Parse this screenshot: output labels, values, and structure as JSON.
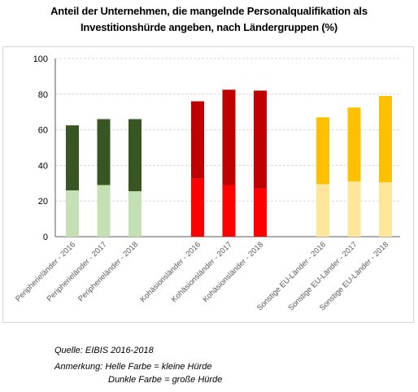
{
  "title": {
    "line1": "Anteil der Unternehmen, die mangelnde Personalqualifikation als",
    "line2": "Investitionshürde angeben, nach Ländergruppen (%)"
  },
  "chart_data": {
    "type": "bar",
    "stacked": true,
    "ylim": [
      0,
      100
    ],
    "yticks": [
      0,
      20,
      40,
      60,
      80,
      100
    ],
    "grid": true,
    "categories": [
      "Peripherieländer - 2016",
      "Peripherieländer - 2017",
      "Peripherieländer - 2018",
      "Kohäsionsländer - 2016",
      "Kohäsionsländer - 2017",
      "Kohäsionsländer - 2018",
      "Sonstige EU-Länder - 2016",
      "Sonstige EU-Länder - 2017",
      "Sonstige EU-Länder - 2018"
    ],
    "groups": [
      [
        0,
        1,
        2
      ],
      [
        3,
        4,
        5
      ],
      [
        6,
        7,
        8
      ]
    ],
    "series": [
      {
        "name": "kleine Hürde",
        "values": [
          26,
          29,
          25.5,
          32.5,
          29,
          27,
          29.5,
          31,
          30.5
        ]
      },
      {
        "name": "große Hürde",
        "values": [
          36.5,
          37,
          40.5,
          43.5,
          53.5,
          55,
          37.5,
          41.5,
          48.5
        ]
      }
    ],
    "colors": {
      "light": [
        "#c5e0b4",
        "#c5e0b4",
        "#c5e0b4",
        "#ff0000",
        "#ff0000",
        "#ff0000",
        "#ffe699",
        "#ffe699",
        "#ffe699"
      ],
      "dark": [
        "#375623",
        "#375623",
        "#375623",
        "#c00000",
        "#c00000",
        "#c00000",
        "#ffc000",
        "#ffc000",
        "#ffc000"
      ]
    }
  },
  "notes": {
    "source": "Quelle: EIBIS 2016-2018",
    "remark_line1": "Anmerkung: Helle Farbe = kleine Hürde",
    "remark_line2": "Dunkle Farbe = große Hürde"
  }
}
